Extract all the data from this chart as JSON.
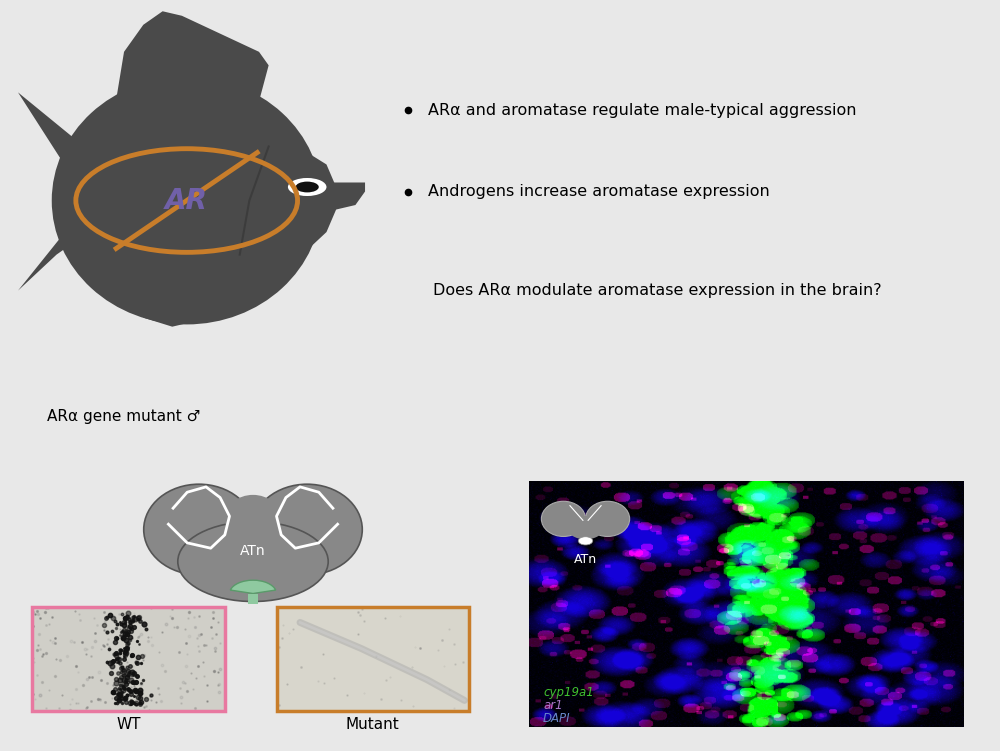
{
  "background_color": "#e8e8e8",
  "panel_bg": "#ffffff",
  "border_color": "#888888",
  "bullet_points": [
    "ARα and aromatase regulate male-typical aggression",
    "Androgens increase aromatase expression"
  ],
  "question_text": "Does ARα modulate aromatase expression in the brain?",
  "label_bottom_left": "ARα gene mutant ♂",
  "wt_label": "WT",
  "mutant_label": "Mutant",
  "atn_label": "ATn",
  "cyp_label": "cyp19a1",
  "ar1_label": "ar1",
  "dapi_label": "DAPI",
  "fish_color": "#4a4a4a",
  "brain_color": "#888888",
  "vmh_color": "#8fc9a0",
  "circle_color": "#c87d2a",
  "ar_text_color": "#7060a8",
  "wt_border": "#e878a0",
  "mutant_border": "#c87d2a",
  "cyp_text_color": "#40c030",
  "ar1_text_color": "#a878c8",
  "dapi_text_color": "#6888c8"
}
